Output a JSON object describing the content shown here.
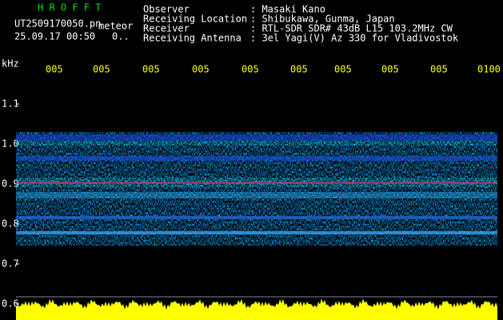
{
  "header": {
    "title": "H R O F F T",
    "file": "UT2509170050.pn",
    "file_tag": "meteor",
    "datetime": "25.09.17 00:50",
    "extra": "0.."
  },
  "info": [
    {
      "label": "Observer",
      "value": ": Masaki Kano"
    },
    {
      "label": "Receiving Location",
      "value": ": Shibukawa, Gunma, Japan"
    },
    {
      "label": "Receiver",
      "value": ": RTL-SDR SDR# 43dB L15 103.2MHz CW"
    },
    {
      "label": "Receiving Antenna",
      "value": ": 3el Yagi(V) Az 330 for Vladivostok"
    }
  ],
  "axis": {
    "unit": "kHz",
    "freq_labels": [
      "1.1",
      "1.0",
      "0.9",
      "0.8",
      "0.7",
      "0.6"
    ],
    "time_labels": [
      "005",
      "005",
      "005",
      "005",
      "005",
      "005",
      "005",
      "005",
      "005",
      "0100"
    ]
  }
}
